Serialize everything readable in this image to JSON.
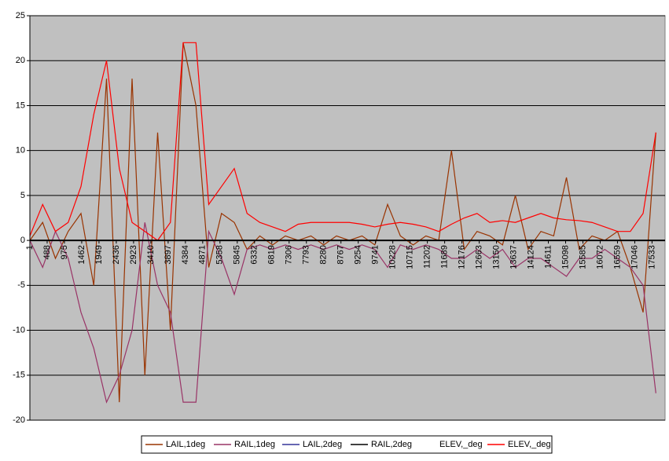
{
  "chart_data": {
    "type": "line",
    "x": [
      1,
      361,
      721,
      1081,
      1441,
      1801,
      2161,
      2521,
      2881,
      3241,
      3601,
      3961,
      4321,
      4681,
      5041,
      5401,
      5761,
      6121,
      6481,
      6841,
      7201,
      7561,
      7921,
      8281,
      8641,
      9001,
      9361,
      9721,
      10081,
      10441,
      10801,
      11161,
      11521,
      11881,
      12241,
      12601,
      12961,
      13321,
      13681,
      14041,
      14401,
      14761,
      15121,
      15481,
      15841,
      16201,
      16561,
      16921,
      17281,
      17641
    ],
    "xlim": [
      1,
      17900
    ],
    "xticks": [
      1,
      488,
      975,
      1462,
      1949,
      2436,
      2923,
      3410,
      3897,
      4384,
      4871,
      5358,
      5845,
      6332,
      6819,
      7306,
      7793,
      8280,
      8767,
      9254,
      9741,
      10228,
      10715,
      11202,
      11689,
      12176,
      12663,
      13150,
      13637,
      14124,
      14611,
      15098,
      15585,
      16072,
      16559,
      17046,
      17533
    ],
    "ylim": [
      -20,
      25
    ],
    "yticks": [
      -20,
      -15,
      -10,
      -5,
      0,
      5,
      10,
      15,
      20,
      25
    ],
    "grid": true,
    "legend": "bottom",
    "series": [
      {
        "name": "LAIL,1deg",
        "color": "#993300",
        "values": [
          0,
          2,
          -2,
          1,
          3,
          -5,
          18,
          -18,
          18,
          -15,
          12,
          -10,
          22,
          15,
          -3,
          3,
          2,
          -1,
          0.5,
          -0.5,
          0.5,
          0,
          0.5,
          -0.5,
          0.5,
          0,
          0.5,
          -0.5,
          4,
          0.5,
          -0.5,
          0.5,
          0,
          10,
          -1,
          1,
          0.5,
          -0.5,
          5,
          -1,
          1,
          0.5,
          7,
          -1,
          0.5,
          0,
          1,
          -3,
          -8,
          12
        ]
      },
      {
        "name": "RAIL,1deg",
        "color": "#993366",
        "values": [
          0,
          -3,
          1,
          -2,
          -8,
          -12,
          -18,
          -15,
          -10,
          2,
          -5,
          -8,
          -18,
          -18,
          1,
          -2,
          -6,
          -1,
          -0.5,
          -1,
          -0.5,
          -1,
          -0.5,
          -1,
          -0.5,
          -1,
          -0.5,
          -1,
          -3,
          -0.5,
          -1,
          -0.5,
          -1,
          -2,
          -2,
          -1,
          -2,
          -1,
          -3,
          -2,
          -2,
          -3,
          -4,
          -2,
          -2,
          -1,
          -2,
          -3,
          -5,
          -17
        ]
      },
      {
        "name": "LAIL,2deg",
        "color": "#333399",
        "values": [
          0,
          0,
          0,
          0,
          0,
          0,
          0,
          0,
          0,
          0,
          0,
          0,
          0,
          0,
          0,
          0,
          0,
          0,
          0,
          0,
          0,
          0,
          0,
          0,
          0,
          0,
          0,
          0,
          0,
          0,
          0,
          0,
          0,
          0,
          0,
          0,
          0,
          0,
          0,
          0,
          0,
          0,
          0,
          0,
          0,
          0,
          0,
          0,
          0,
          0
        ]
      },
      {
        "name": "RAIL,2deg",
        "color": "#000000",
        "values": [
          0,
          0,
          0,
          0,
          0,
          0,
          0,
          0,
          0,
          0,
          0,
          0,
          0,
          0,
          0,
          0,
          0,
          0,
          0,
          0,
          0,
          0,
          0,
          0,
          0,
          0,
          0,
          0,
          0,
          0,
          0,
          0,
          0,
          0,
          0,
          0,
          0,
          0,
          0,
          0,
          0,
          0,
          0,
          0,
          0,
          0,
          0,
          0,
          0,
          0
        ]
      },
      {
        "name": "ELEV,_deg",
        "color": "#ffffff",
        "values": [
          0,
          0,
          0,
          0,
          0,
          0,
          0,
          0,
          0,
          0,
          0,
          0,
          0,
          0,
          0,
          0,
          0,
          0,
          0,
          0,
          0,
          0,
          0,
          0,
          0,
          0,
          0,
          0,
          0,
          0,
          0,
          0,
          0,
          0,
          0,
          0,
          0,
          0,
          0,
          0,
          0,
          0,
          0,
          0,
          0,
          0,
          0,
          0,
          0,
          0
        ]
      },
      {
        "name": "ELEV,_deg",
        "color": "#ff0000",
        "values": [
          0.5,
          4,
          1,
          2,
          6,
          14,
          20,
          8,
          2,
          1,
          0,
          2,
          22,
          22,
          4,
          6,
          8,
          3,
          2,
          1.5,
          1,
          1.8,
          2,
          2,
          2,
          2,
          1.8,
          1.5,
          1.8,
          2,
          1.8,
          1.5,
          1,
          1.8,
          2.5,
          3,
          2,
          2.2,
          2,
          2.5,
          3,
          2.5,
          2.3,
          2.2,
          2,
          1.5,
          1,
          1,
          3,
          12
        ]
      }
    ]
  }
}
